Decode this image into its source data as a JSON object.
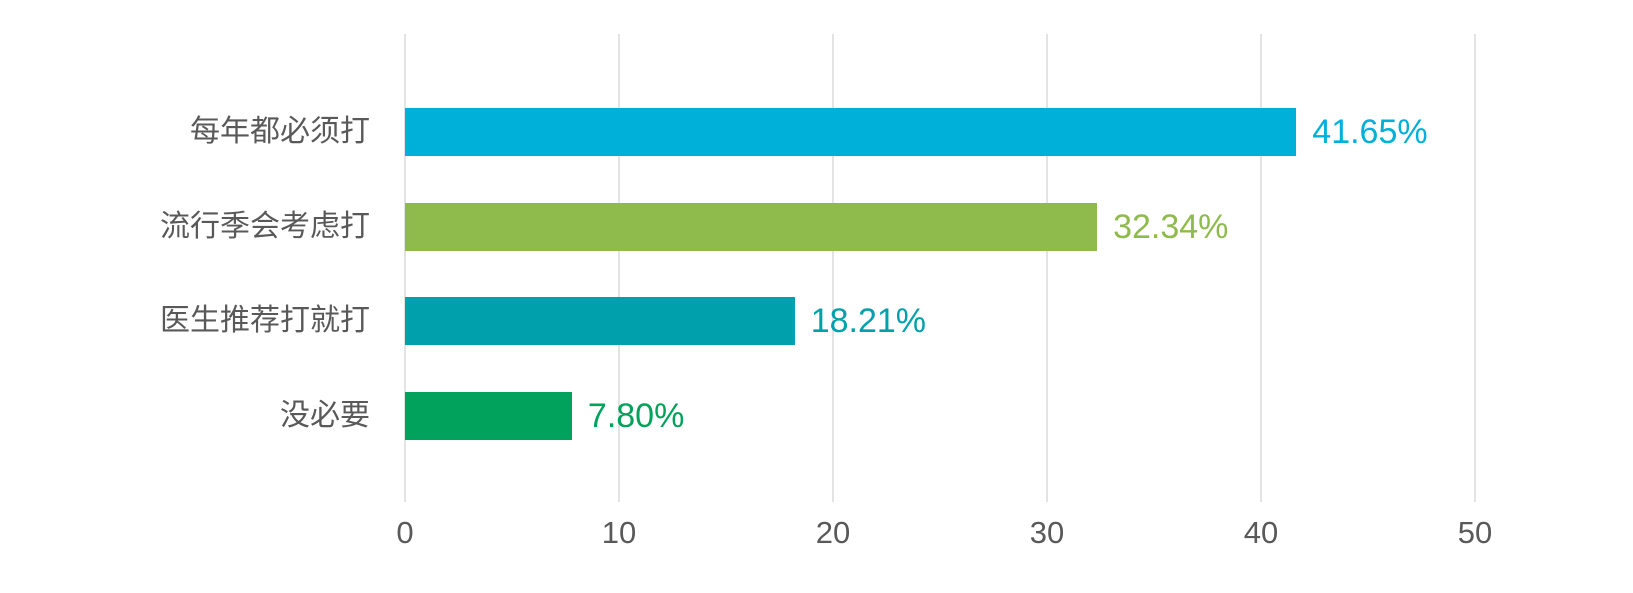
{
  "chart_data": {
    "type": "bar",
    "orientation": "horizontal",
    "categories": [
      "每年都必须打",
      "流行季会考虑打",
      "医生推荐打就打",
      "没必要"
    ],
    "values": [
      41.65,
      32.34,
      18.21,
      7.8
    ],
    "value_labels": [
      "41.65%",
      "32.34%",
      "18.21%",
      "7.80%"
    ],
    "bar_colors": [
      "#00B0D8",
      "#8FBA4C",
      "#00A0AC",
      "#00A25C"
    ],
    "x_ticks": [
      0,
      10,
      20,
      30,
      40,
      50
    ],
    "x_tick_labels": [
      "0",
      "10",
      "20",
      "30",
      "40",
      "50"
    ],
    "xlim": [
      0,
      50
    ],
    "grid": "vertical-only",
    "legend": "none",
    "xlabel": "",
    "ylabel": ""
  },
  "style": {
    "gridline_color": "#e3e3e3",
    "category_label_color": "#595959",
    "axis_label_color": "#595959",
    "background_color": "#ffffff"
  }
}
